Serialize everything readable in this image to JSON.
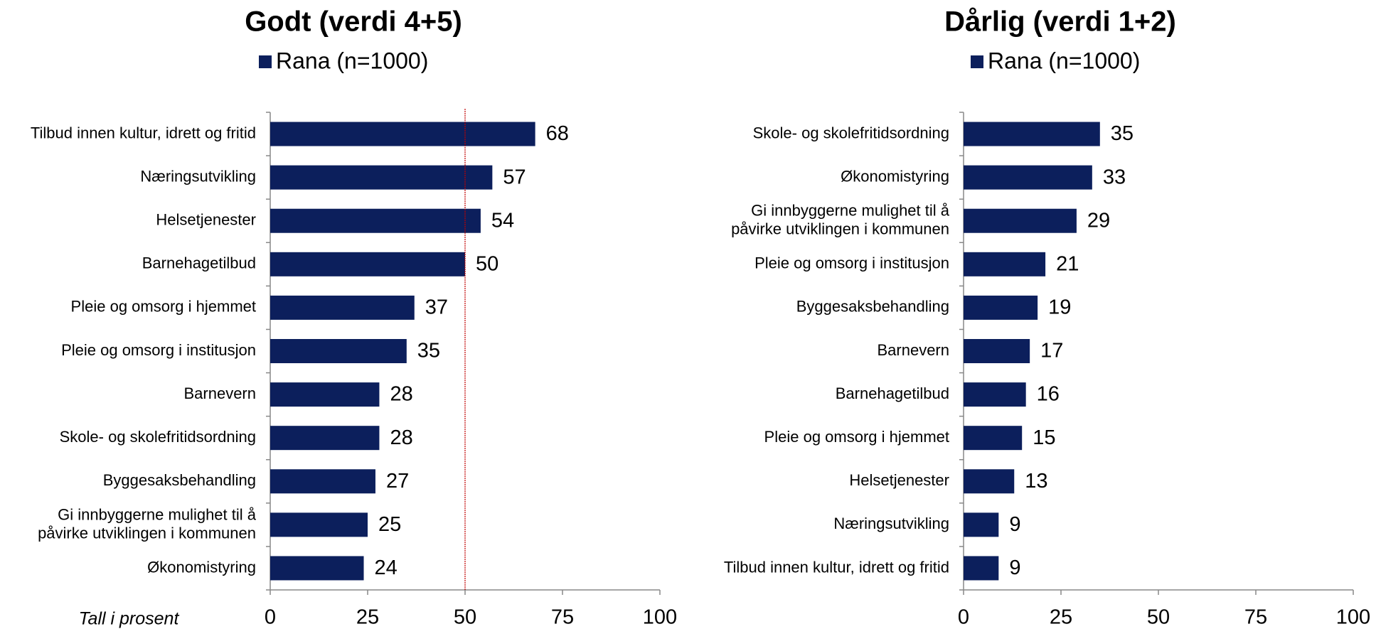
{
  "chart_data": [
    {
      "type": "barh",
      "title": "Godt (verdi 4+5)",
      "annotation": "Tall i prosent",
      "series": [
        {
          "name": "Rana (n=1000)",
          "color": "#0c1f5c",
          "values": [
            68,
            57,
            54,
            50,
            37,
            35,
            28,
            28,
            27,
            25,
            24
          ]
        }
      ],
      "categories": [
        "Tilbud innen kultur, idrett og fritid",
        "Næringsutvikling",
        "Helsetjenester",
        "Barnehagetilbud",
        "Pleie og omsorg i hjemmet",
        "Pleie og omsorg i institusjon",
        "Barnevern",
        "Skole- og skolefritidsordning",
        "Byggesaksbehandling",
        "Gi innbyggerne mulighet til å\npåvirke utviklingen i kommunen",
        "Økonomistyring"
      ],
      "xlim": [
        0,
        100
      ],
      "xticks": [
        0,
        25,
        50,
        75,
        100
      ],
      "reference_line": 50
    },
    {
      "type": "barh",
      "title": "Dårlig (verdi 1+2)",
      "series": [
        {
          "name": "Rana (n=1000)",
          "color": "#0c1f5c",
          "values": [
            35,
            33,
            29,
            21,
            19,
            17,
            16,
            15,
            13,
            9,
            9
          ]
        }
      ],
      "categories": [
        "Skole- og skolefritidsordning",
        "Økonomistyring",
        "Gi innbyggerne mulighet til å\npåvirke utviklingen i kommunen",
        "Pleie og omsorg i institusjon",
        "Byggesaksbehandling",
        "Barnevern",
        "Barnehagetilbud",
        "Pleie og omsorg i hjemmet",
        "Helsetjenester",
        "Næringsutvikling",
        "Tilbud innen kultur, idrett og fritid"
      ],
      "xlim": [
        0,
        100
      ],
      "xticks": [
        0,
        25,
        50,
        75,
        100
      ]
    }
  ]
}
